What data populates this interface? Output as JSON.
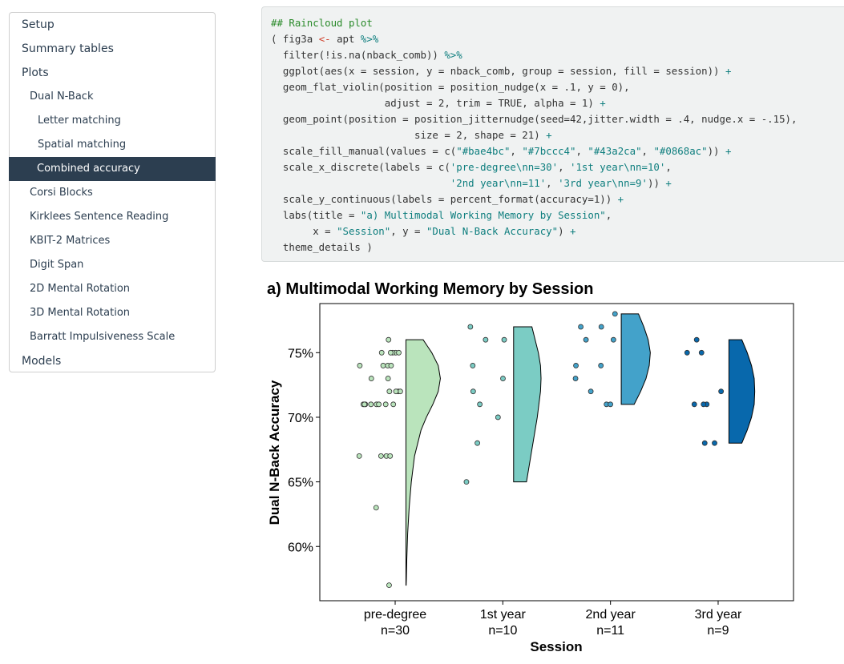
{
  "toc": [
    {
      "label": "Setup",
      "level": 0
    },
    {
      "label": "Summary tables",
      "level": 0
    },
    {
      "label": "Plots",
      "level": 0
    },
    {
      "label": "Dual N-Back",
      "level": 1
    },
    {
      "label": "Letter matching",
      "level": 2
    },
    {
      "label": "Spatial matching",
      "level": 2
    },
    {
      "label": "Combined accuracy",
      "level": 2,
      "active": true
    },
    {
      "label": "Corsi Blocks",
      "level": 1
    },
    {
      "label": "Kirklees Sentence Reading",
      "level": 1
    },
    {
      "label": "KBIT-2 Matrices",
      "level": 1
    },
    {
      "label": "Digit Span",
      "level": 1
    },
    {
      "label": "2D Mental Rotation",
      "level": 1
    },
    {
      "label": "3D Mental Rotation",
      "level": 1
    },
    {
      "label": "Barratt Impulsiveness Scale",
      "level": 1
    },
    {
      "label": "Models",
      "level": 0
    }
  ],
  "code": {
    "lines": [
      [
        [
          "com",
          "## Raincloud plot"
        ]
      ],
      [
        [
          "pl",
          "( fig3a "
        ],
        [
          "asg",
          "<-"
        ],
        [
          "pl",
          " apt "
        ],
        [
          "op",
          "%>%"
        ]
      ],
      [
        [
          "pl",
          "  filter(!is.na(nback_comb)) "
        ],
        [
          "op",
          "%>%"
        ]
      ],
      [
        [
          "pl",
          "  ggplot(aes(x = session, y = nback_comb, group = session, fill = session)) "
        ],
        [
          "op",
          "+"
        ]
      ],
      [
        [
          "pl",
          "  geom_flat_violin(position = position_nudge(x = .1, y = 0),"
        ]
      ],
      [
        [
          "pl",
          "                   adjust = 2, trim = TRUE, alpha = 1) "
        ],
        [
          "op",
          "+"
        ]
      ],
      [
        [
          "pl",
          "  geom_point(position = position_jitternudge(seed=42,jitter.width = .4, nudge.x = -.15),"
        ]
      ],
      [
        [
          "pl",
          "                        size = 2, shape = 21) "
        ],
        [
          "op",
          "+"
        ]
      ],
      [
        [
          "pl",
          "  scale_fill_manual(values = c("
        ],
        [
          "str",
          "\"#bae4bc\""
        ],
        [
          "pl",
          ", "
        ],
        [
          "str",
          "\"#7bccc4\""
        ],
        [
          "pl",
          ", "
        ],
        [
          "str",
          "\"#43a2ca\""
        ],
        [
          "pl",
          ", "
        ],
        [
          "str",
          "\"#0868ac\""
        ],
        [
          "pl",
          ")) "
        ],
        [
          "op",
          "+"
        ]
      ],
      [
        [
          "pl",
          "  scale_x_discrete(labels = c("
        ],
        [
          "str",
          "'pre-degree\\nn=30'"
        ],
        [
          "pl",
          ", "
        ],
        [
          "str",
          "'1st year\\nn=10'"
        ],
        [
          "pl",
          ","
        ]
      ],
      [
        [
          "pl",
          "                              "
        ],
        [
          "str",
          "'2nd year\\nn=11'"
        ],
        [
          "pl",
          ", "
        ],
        [
          "str",
          "'3rd year\\nn=9'"
        ],
        [
          "pl",
          ")) "
        ],
        [
          "op",
          "+"
        ]
      ],
      [
        [
          "pl",
          "  scale_y_continuous(labels = percent_format(accuracy=1)) "
        ],
        [
          "op",
          "+"
        ]
      ],
      [
        [
          "pl",
          "  labs(title = "
        ],
        [
          "str",
          "\"a) Multimodal Working Memory by Session\""
        ],
        [
          "pl",
          ","
        ]
      ],
      [
        [
          "pl",
          "       x = "
        ],
        [
          "str",
          "\"Session\""
        ],
        [
          "pl",
          ", y = "
        ],
        [
          "str",
          "\"Dual N-Back Accuracy\""
        ],
        [
          "pl",
          ") "
        ],
        [
          "op",
          "+"
        ]
      ],
      [
        [
          "pl",
          "  theme_details )"
        ]
      ]
    ]
  },
  "chart_data": {
    "type": "raincloud",
    "title": "a) Multimodal Working Memory by Session",
    "xlabel": "Session",
    "ylabel": "Dual N-Back Accuracy",
    "ylim": [
      0.558,
      0.788
    ],
    "yticks": [
      0.6,
      0.65,
      0.7,
      0.75
    ],
    "ytick_labels": [
      "60%",
      "65%",
      "70%",
      "75%"
    ],
    "grid": false,
    "categories": [
      {
        "line1": "pre-degree",
        "line2": "n=30",
        "color": "#bae4bc",
        "violin": [
          [
            0.57,
            0.002
          ],
          [
            0.575,
            0.004
          ],
          [
            0.59,
            0.008
          ],
          [
            0.61,
            0.016
          ],
          [
            0.63,
            0.03
          ],
          [
            0.65,
            0.05
          ],
          [
            0.67,
            0.08
          ],
          [
            0.69,
            0.14
          ],
          [
            0.7,
            0.19
          ],
          [
            0.71,
            0.25
          ],
          [
            0.72,
            0.3
          ],
          [
            0.73,
            0.32
          ],
          [
            0.74,
            0.3
          ],
          [
            0.75,
            0.24
          ],
          [
            0.755,
            0.2
          ],
          [
            0.76,
            0.16
          ]
        ],
        "points": [
          0.75,
          0.75,
          0.75,
          0.75,
          0.75,
          0.76,
          0.74,
          0.74,
          0.74,
          0.74,
          0.73,
          0.73,
          0.72,
          0.72,
          0.72,
          0.72,
          0.71,
          0.71,
          0.71,
          0.71,
          0.71,
          0.71,
          0.71,
          0.71,
          0.67,
          0.67,
          0.67,
          0.67,
          0.63,
          0.57
        ]
      },
      {
        "line1": "1st year",
        "line2": "n=10",
        "color": "#7bccc4",
        "violin": [
          [
            0.65,
            0.12
          ],
          [
            0.66,
            0.14
          ],
          [
            0.68,
            0.18
          ],
          [
            0.7,
            0.22
          ],
          [
            0.72,
            0.25
          ],
          [
            0.73,
            0.255
          ],
          [
            0.74,
            0.25
          ],
          [
            0.75,
            0.23
          ],
          [
            0.76,
            0.2
          ],
          [
            0.77,
            0.17
          ]
        ],
        "points": [
          0.77,
          0.76,
          0.76,
          0.74,
          0.73,
          0.72,
          0.71,
          0.7,
          0.68,
          0.65
        ]
      },
      {
        "line1": "2nd year",
        "line2": "n=11",
        "color": "#43a2ca",
        "violin": [
          [
            0.71,
            0.12
          ],
          [
            0.72,
            0.18
          ],
          [
            0.73,
            0.23
          ],
          [
            0.74,
            0.26
          ],
          [
            0.75,
            0.27
          ],
          [
            0.76,
            0.25
          ],
          [
            0.77,
            0.21
          ],
          [
            0.78,
            0.16
          ]
        ],
        "points": [
          0.78,
          0.77,
          0.77,
          0.76,
          0.76,
          0.74,
          0.74,
          0.73,
          0.72,
          0.71,
          0.71
        ]
      },
      {
        "line1": "3rd year",
        "line2": "n=9",
        "color": "#0868ac",
        "violin": [
          [
            0.68,
            0.12
          ],
          [
            0.69,
            0.17
          ],
          [
            0.7,
            0.21
          ],
          [
            0.71,
            0.235
          ],
          [
            0.72,
            0.24
          ],
          [
            0.73,
            0.235
          ],
          [
            0.74,
            0.21
          ],
          [
            0.75,
            0.17
          ],
          [
            0.76,
            0.12
          ]
        ],
        "points": [
          0.76,
          0.75,
          0.75,
          0.72,
          0.71,
          0.71,
          0.71,
          0.68,
          0.68
        ]
      }
    ]
  }
}
